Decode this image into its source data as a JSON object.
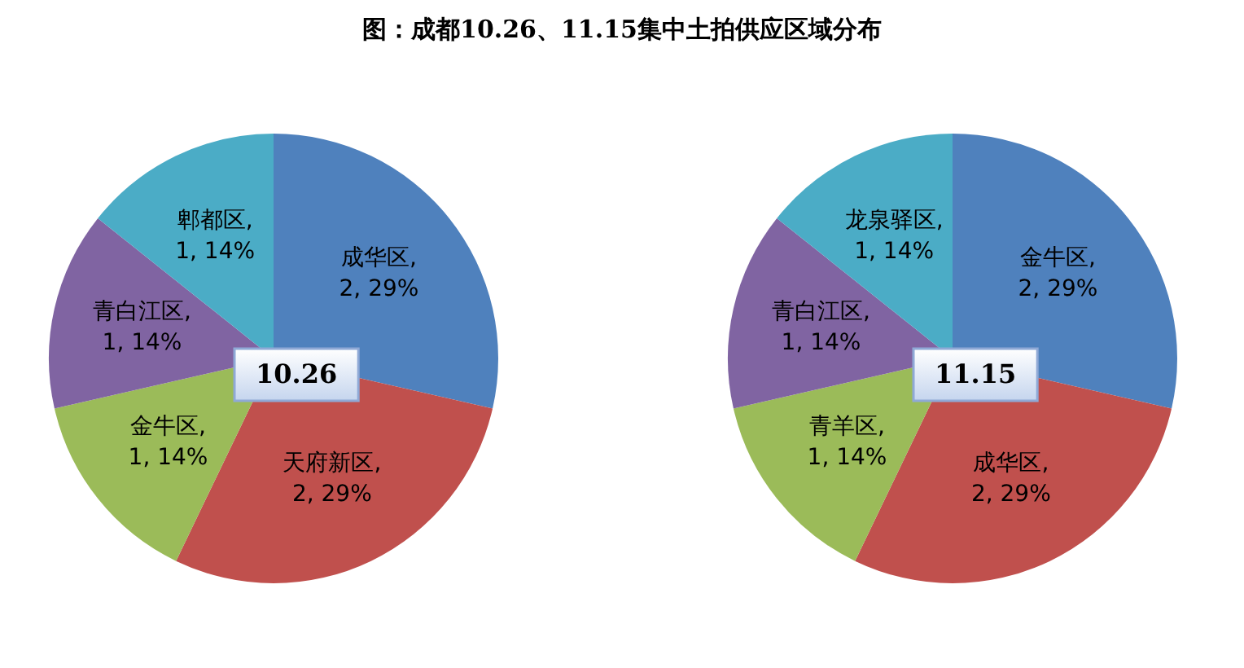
{
  "chart_data": [
    {
      "type": "pie",
      "title": "图：成都10.26、11.15集中土拍供应区域分布",
      "categories": [
        "成华区",
        "天府新区",
        "金牛区",
        "青白江区",
        "郫都区"
      ],
      "values": [
        2,
        2,
        1,
        1,
        1
      ],
      "value_labels": [
        ", 2, 29%",
        ", 2, 29%",
        ", 1, 14%",
        ", 1, 14%",
        ", 1, 14%"
      ],
      "colors": [
        "#4f81bd",
        "#c0504d",
        "#9bbb59",
        "#8064a2",
        "#4bacc6"
      ],
      "annotations": [
        "10.26"
      ],
      "legend": false
    },
    {
      "type": "pie",
      "categories": [
        "金牛区",
        "成华区",
        "青羊区",
        "青白江区",
        "龙泉驿区"
      ],
      "values": [
        2,
        2,
        1,
        1,
        1
      ],
      "value_labels": [
        ", 2, 29%",
        ", 2, 29%",
        ", 1, 14%",
        ", 1, 14%",
        ", 1, 14%"
      ],
      "colors": [
        "#4f81bd",
        "#c0504d",
        "#9bbb59",
        "#8064a2",
        "#4bacc6"
      ],
      "annotations": [
        "11.15"
      ],
      "legend": false
    }
  ]
}
